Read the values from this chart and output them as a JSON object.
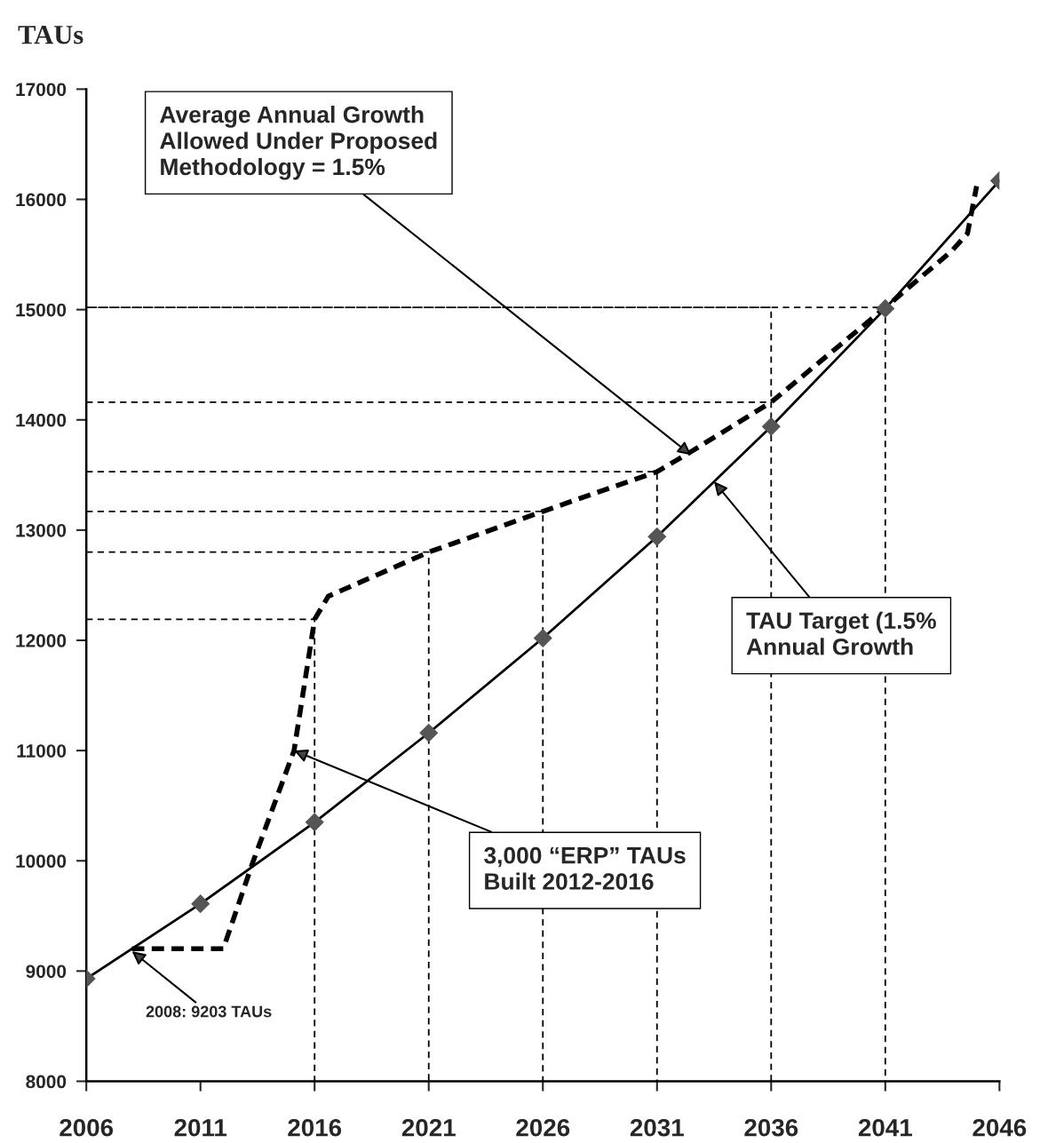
{
  "chart_data": {
    "type": "line",
    "ylabel": "TAUs",
    "xlim": [
      2006,
      2046
    ],
    "xticks": [
      2006,
      2011,
      2016,
      2021,
      2026,
      2031,
      2036,
      2041,
      2046
    ],
    "ylim": [
      8000,
      17000
    ],
    "yticks": [
      8000,
      9000,
      10000,
      11000,
      12000,
      13000,
      14000,
      15000,
      16000,
      17000
    ],
    "grid": false,
    "legend": false,
    "series": [
      {
        "color": "#000000",
        "marker": "diamond",
        "line_style": "solid",
        "x": [
          2006,
          2011,
          2016,
          2021,
          2026,
          2031,
          2036,
          2041,
          2046
        ],
        "values": [
          8930,
          9610,
          10350,
          11160,
          12020,
          12940,
          13940,
          15010,
          16170
        ]
      },
      {
        "color": "#000000",
        "marker": "none",
        "line_style": "dashed",
        "x": [
          2008,
          2012,
          2013.3,
          2015.1,
          2016,
          2016.6,
          2021,
          2026,
          2031,
          2032.4,
          2036,
          2041,
          2043.9,
          2044.6,
          2045
        ],
        "values": [
          9203,
          9203,
          9990,
          11000,
          12190,
          12400,
          12800,
          13170,
          13530,
          13700,
          14160,
          15020,
          15530,
          15690,
          16120
        ]
      },
      {
        "color": "#000000",
        "marker": "none",
        "line_style": "dotted",
        "x": [
          2006,
          2016,
          2016
        ],
        "values": [
          12190,
          12190,
          8000
        ]
      },
      {
        "color": "#000000",
        "marker": "none",
        "line_style": "dotted",
        "x": [
          2006,
          2021,
          2021
        ],
        "values": [
          12800,
          12800,
          8000
        ]
      },
      {
        "color": "#000000",
        "marker": "none",
        "line_style": "dotted",
        "x": [
          2006,
          2026,
          2026
        ],
        "values": [
          13170,
          13170,
          8000
        ]
      },
      {
        "color": "#000000",
        "marker": "none",
        "line_style": "dotted",
        "x": [
          2006,
          2031,
          2031
        ],
        "values": [
          13530,
          13530,
          8000
        ]
      },
      {
        "color": "#000000",
        "marker": "none",
        "line_style": "dotted",
        "x": [
          2006,
          2036
        ],
        "values": [
          14160,
          14160
        ]
      },
      {
        "color": "#000000",
        "marker": "none",
        "line_style": "dotted",
        "x": [
          2036,
          2036,
          2006,
          2041,
          2041
        ],
        "values": [
          8000,
          15020,
          15020,
          15020,
          8000
        ]
      }
    ],
    "annotations": [
      {
        "text": "Average Annual Growth\nAllowed Under Proposed\nMethodology = 1.5%",
        "x": 2032.5,
        "y": 13680
      },
      {
        "text": "TAU Target (1.5%\nAnnual Growth",
        "x": 2033.5,
        "y": 13440
      },
      {
        "text": "3,000 “ERP” TAUs\nBuilt 2012-2016",
        "x": 2015.1,
        "y": 11000
      },
      {
        "text": "2008: 9203 TAUs",
        "x": 2008,
        "y": 9180
      }
    ]
  }
}
